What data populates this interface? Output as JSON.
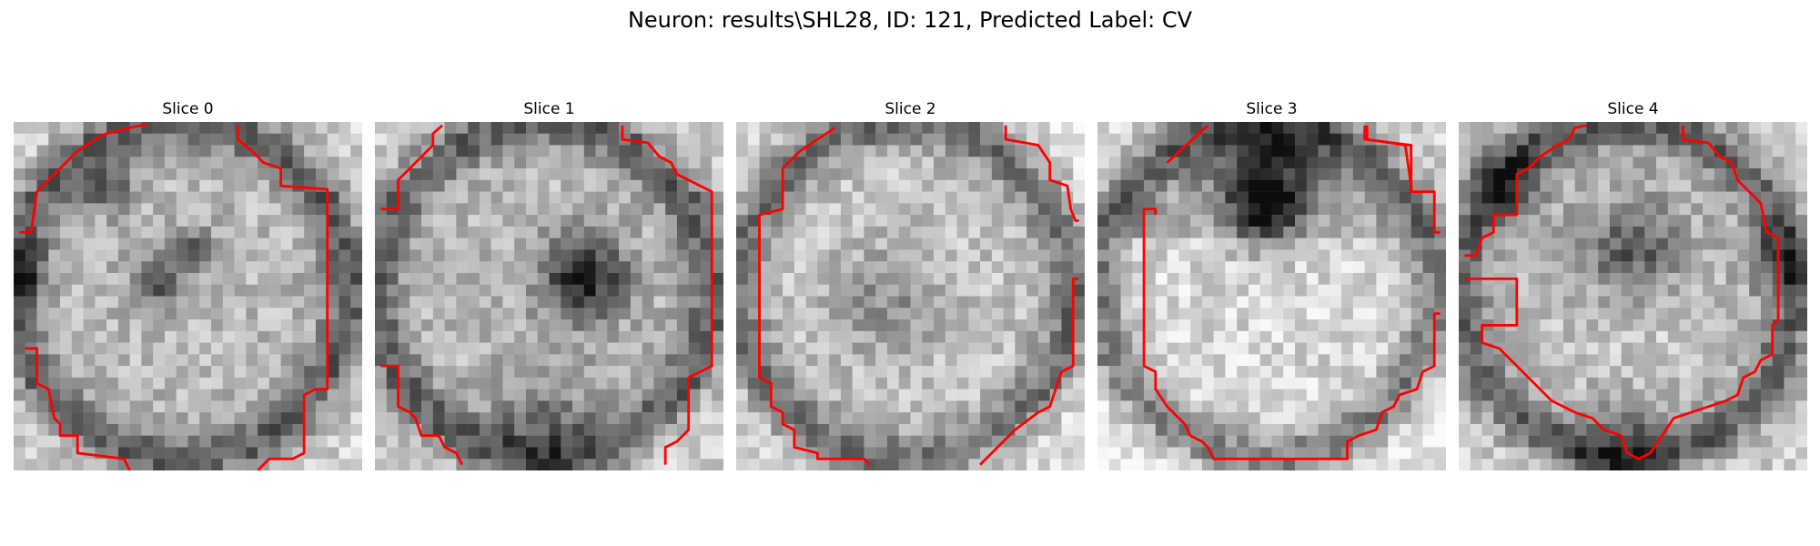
{
  "figure": {
    "title": "Neuron: results\\SHL28, ID: 121, Predicted Label: CV"
  },
  "panels": [
    {
      "title": "Slice 0",
      "seed": 11,
      "features": "dark-spots-center"
    },
    {
      "title": "Slice 1",
      "seed": 23,
      "features": "dark-blob-right"
    },
    {
      "title": "Slice 2",
      "seed": 37,
      "features": "uniform-light"
    },
    {
      "title": "Slice 3",
      "seed": 41,
      "features": "dark-band-top"
    },
    {
      "title": "Slice 4",
      "seed": 53,
      "features": "dark-band-upper"
    }
  ],
  "colors": {
    "contour": "#ff0000",
    "background": "#ffffff"
  }
}
